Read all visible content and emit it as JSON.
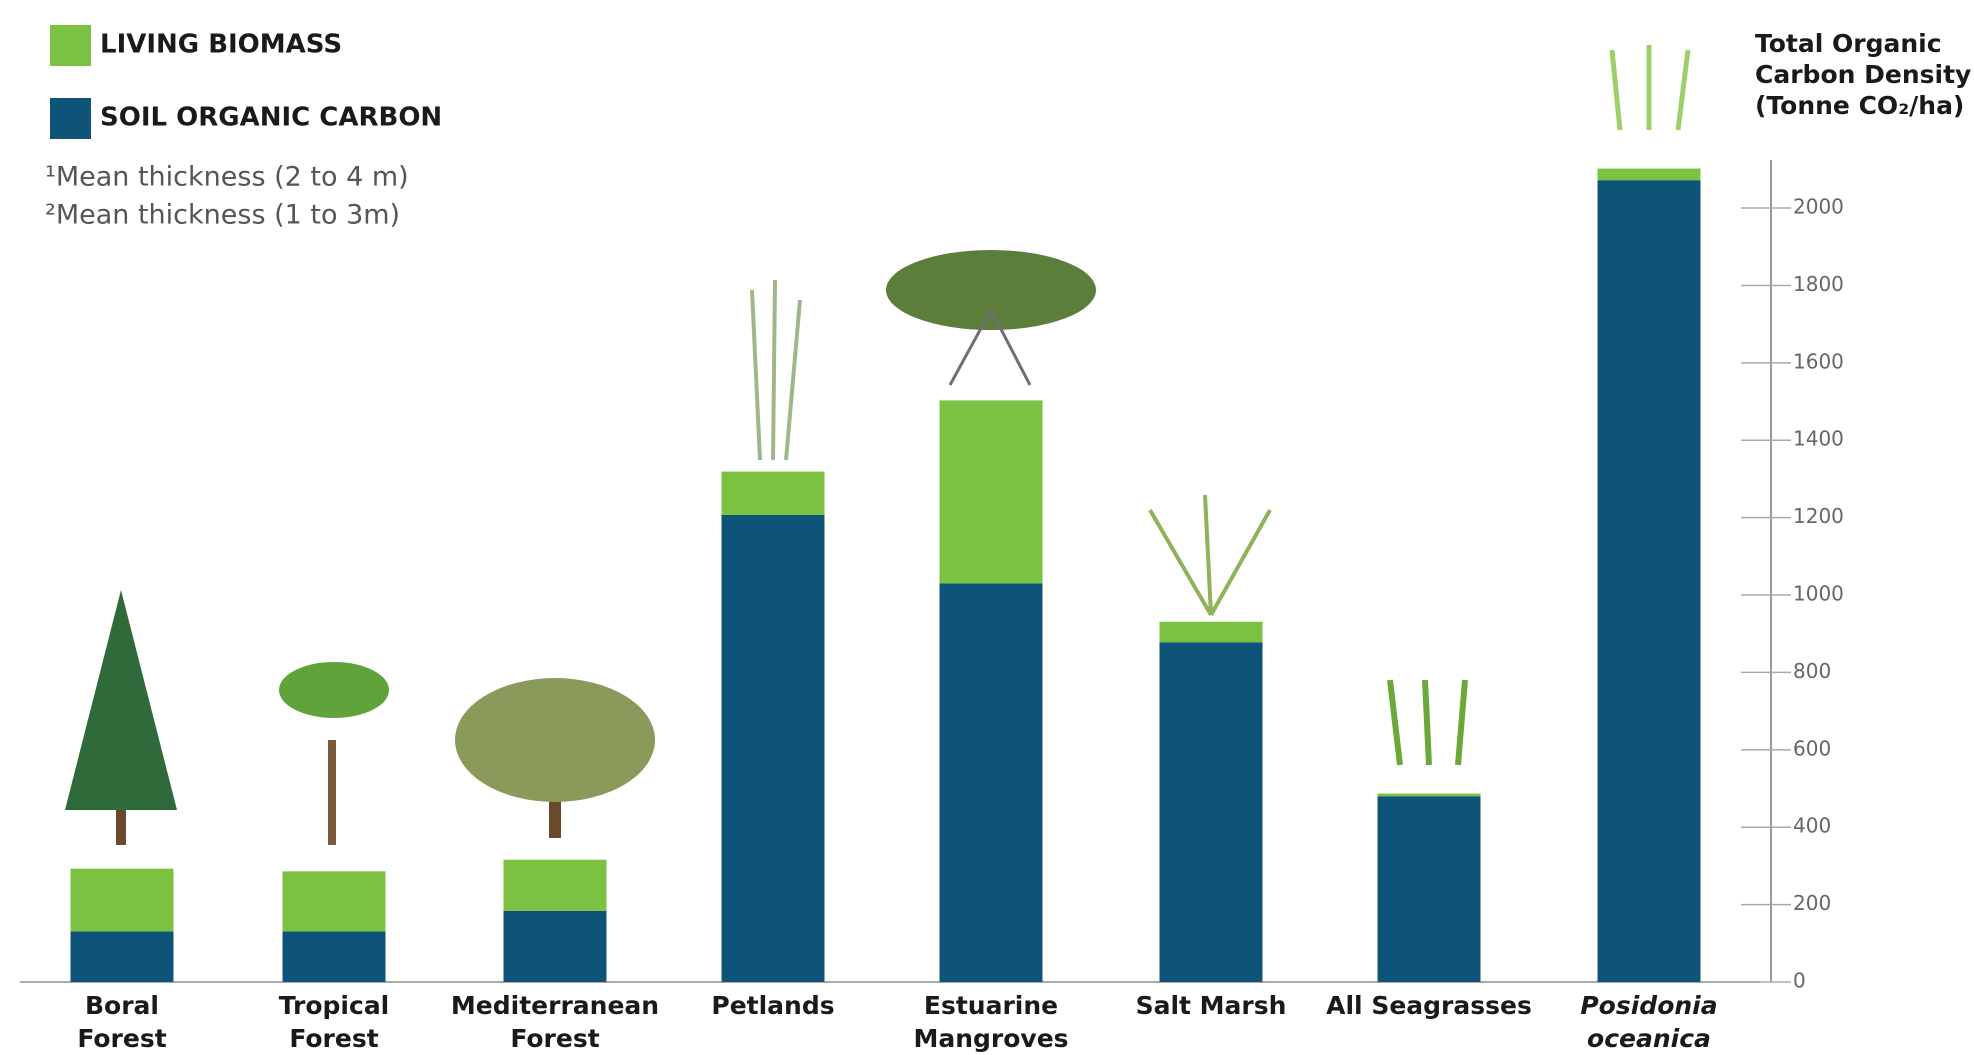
{
  "chart_data": {
    "type": "stacked_bar",
    "axis_title": [
      "Total Organic",
      "Carbon Density",
      "(Tonne CO₂/ha)"
    ],
    "notes": [
      "¹Mean thickness (2 to 4 m)",
      "²Mean thickness (1 to 3m)"
    ],
    "categories": [
      [
        "Boral",
        "Forest"
      ],
      [
        "Tropical",
        "Forest"
      ],
      [
        "Mediterranean",
        "Forest"
      ],
      [
        "Petlands"
      ],
      [
        "Estuarine",
        "Mangroves"
      ],
      [
        "Salt Marsh"
      ],
      [
        "All Seagrasses"
      ],
      [
        "Posidonia",
        "oceanica"
      ]
    ],
    "series": [
      {
        "name": "SOIL ORGANIC CARBON",
        "color": "#0d5478",
        "values": [
          131,
          131,
          184,
          1207,
          1030,
          878,
          480,
          2072
        ]
      },
      {
        "name": "LIVING BIOMASS",
        "color": "#7cc242",
        "values": [
          162,
          155,
          132,
          112,
          473,
          53,
          7,
          30
        ]
      }
    ],
    "ylim": [
      0,
      2150
    ],
    "yticks": [
      0,
      200,
      400,
      600,
      800,
      1000,
      1200,
      1400,
      1600,
      1800,
      2000
    ],
    "axis_side": "right"
  }
}
